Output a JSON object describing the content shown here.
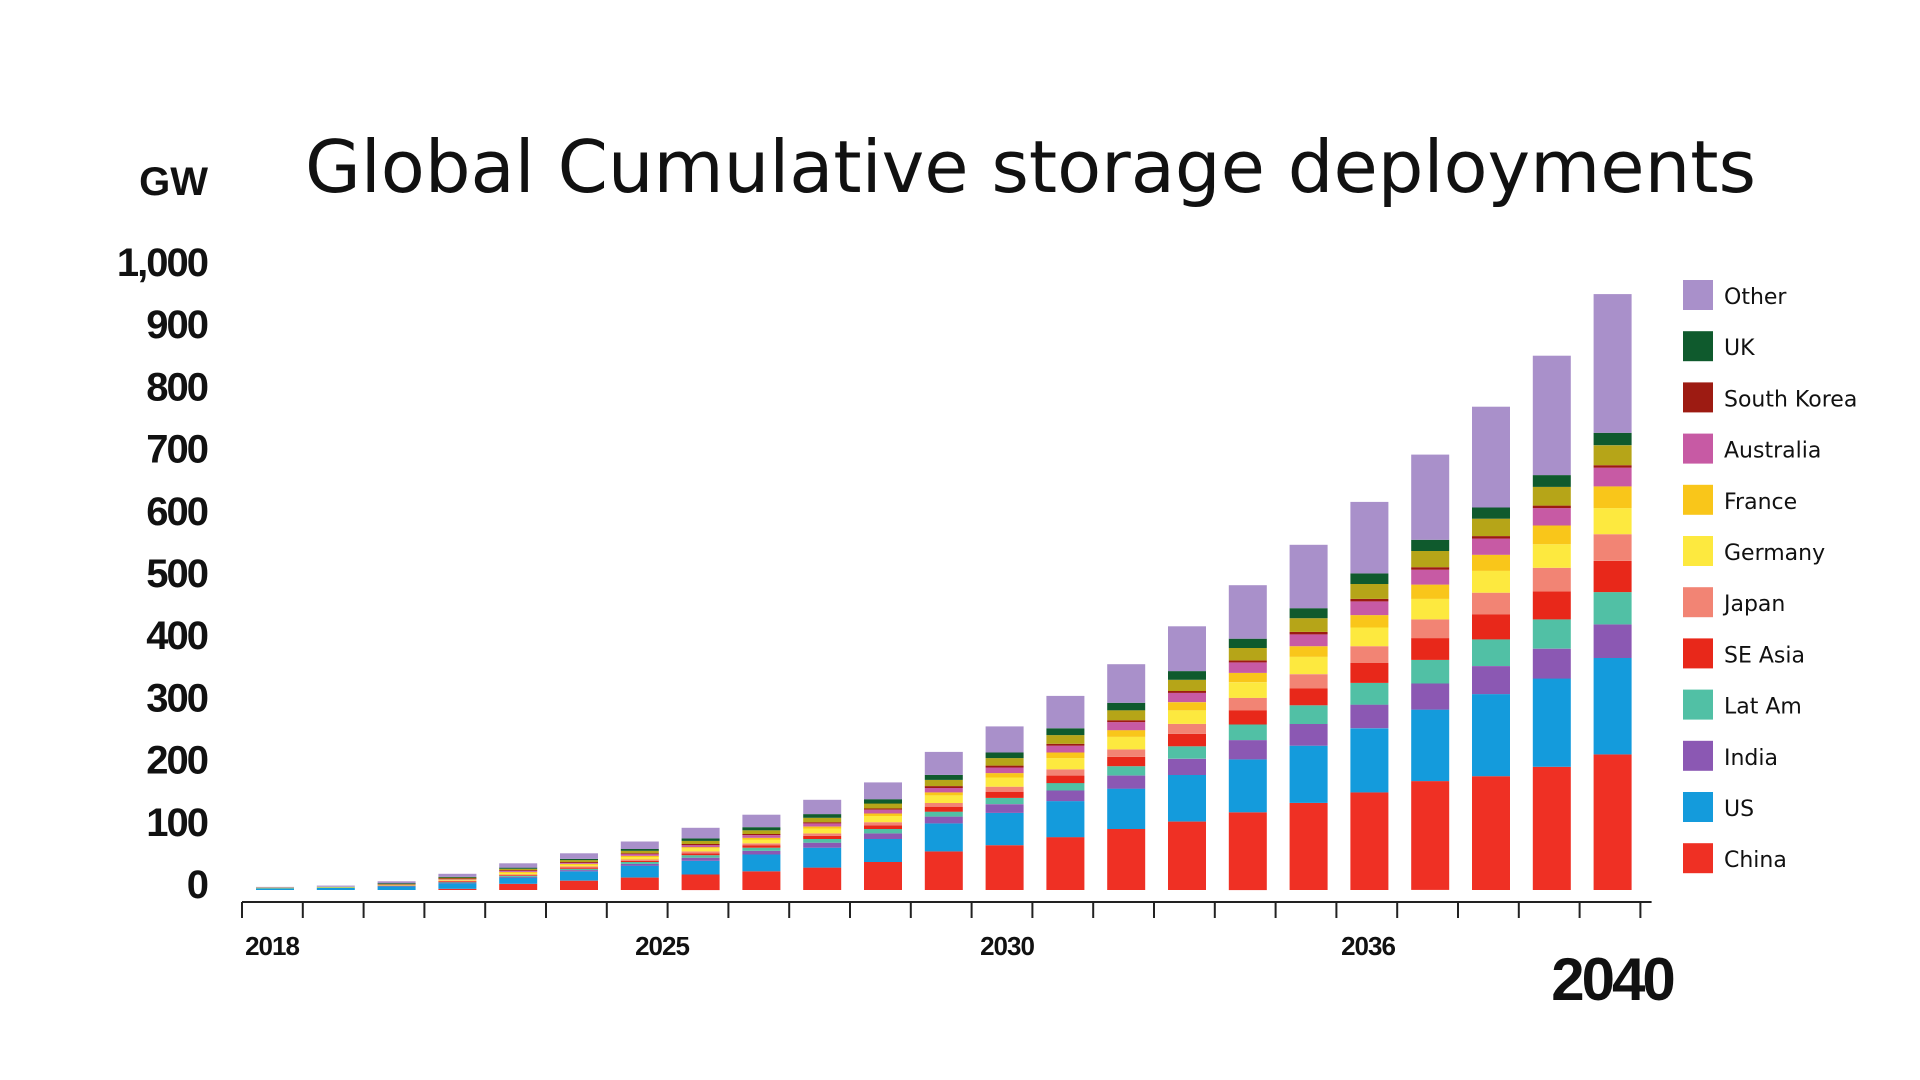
{
  "chart_data": {
    "type": "bar",
    "stacked": true,
    "title": "Global Cumulative storage deployments",
    "ylabel": "GW",
    "xlabel": "",
    "ylim": [
      0,
      1000
    ],
    "yticks": [
      "0",
      "100",
      "200",
      "300",
      "400",
      "500",
      "600",
      "700",
      "800",
      "900",
      "1,000"
    ],
    "xtick_labels_shown": [
      "2018",
      "2025",
      "2030",
      "2036",
      "2040"
    ],
    "grid": false,
    "legend_position": "right",
    "categories": [
      "2018",
      "2019",
      "2020",
      "2021",
      "2022",
      "2023",
      "2024",
      "2025",
      "2026",
      "2027",
      "2028",
      "2029",
      "2030",
      "2031",
      "2032",
      "2033",
      "2034",
      "2035",
      "2036",
      "2037",
      "2038",
      "2039",
      "2040"
    ],
    "series": [
      {
        "name": "China",
        "color": "#ef3024",
        "values": [
          0,
          0,
          0,
          2,
          10,
          15,
          20,
          25,
          30,
          36,
          45,
          62,
          72,
          85,
          98,
          110,
          125,
          140,
          157,
          175,
          183,
          198,
          218
        ]
      },
      {
        "name": "US",
        "color": "#149bdc",
        "values": [
          3,
          4,
          6,
          9,
          10,
          15,
          19,
          22,
          27,
          32,
          37,
          45,
          52,
          58,
          65,
          75,
          85,
          92,
          103,
          115,
          132,
          142,
          155
        ]
      },
      {
        "name": "India",
        "color": "#8b58b3",
        "values": [
          0,
          0,
          1,
          1,
          1,
          2,
          3,
          5,
          6,
          8,
          9,
          11,
          14,
          17,
          21,
          26,
          31,
          35,
          38,
          42,
          45,
          48,
          54
        ]
      },
      {
        "name": "Lat Am",
        "color": "#51c0a5",
        "values": [
          0,
          0,
          0,
          1,
          2,
          2,
          3,
          4,
          5,
          6,
          7,
          8,
          10,
          12,
          15,
          20,
          25,
          30,
          35,
          38,
          43,
          47,
          52
        ]
      },
      {
        "name": "SE Asia",
        "color": "#e8281a",
        "values": [
          0,
          0,
          0,
          1,
          1,
          2,
          2,
          3,
          4,
          5,
          6,
          8,
          10,
          12,
          15,
          20,
          23,
          27,
          32,
          35,
          40,
          45,
          50
        ]
      },
      {
        "name": "Japan",
        "color": "#f28474",
        "values": [
          0,
          0,
          0,
          1,
          1,
          2,
          2,
          3,
          3,
          4,
          5,
          6,
          8,
          10,
          12,
          16,
          20,
          23,
          27,
          30,
          35,
          38,
          43
        ]
      },
      {
        "name": "Germany",
        "color": "#fde93f",
        "values": [
          1,
          1,
          1,
          2,
          3,
          3,
          4,
          5,
          6,
          8,
          10,
          12,
          15,
          18,
          20,
          22,
          25,
          28,
          30,
          33,
          35,
          38,
          42
        ]
      },
      {
        "name": "France",
        "color": "#f9c61a",
        "values": [
          0,
          0,
          0,
          0,
          1,
          1,
          2,
          2,
          3,
          3,
          4,
          5,
          7,
          9,
          11,
          13,
          15,
          17,
          20,
          23,
          26,
          30,
          35
        ]
      },
      {
        "name": "Australia",
        "color": "#c75aa4",
        "values": [
          0,
          0,
          1,
          1,
          2,
          2,
          3,
          3,
          4,
          5,
          6,
          7,
          9,
          11,
          13,
          15,
          17,
          19,
          22,
          24,
          26,
          28,
          30
        ]
      },
      {
        "name": "South Korea",
        "color": "#9d1b12",
        "values": [
          0,
          0,
          0,
          1,
          1,
          1,
          1,
          2,
          2,
          2,
          2,
          3,
          3,
          3,
          3,
          3,
          3,
          4,
          4,
          4,
          4,
          4,
          4
        ]
      },
      {
        "name": "",
        "color": "#b6a518",
        "values": [
          0,
          0,
          1,
          1,
          2,
          3,
          4,
          5,
          6,
          7,
          8,
          10,
          12,
          14,
          16,
          18,
          20,
          22,
          24,
          26,
          28,
          30,
          32
        ]
      },
      {
        "name": "UK",
        "color": "#0f5a2d",
        "values": [
          0,
          0,
          1,
          1,
          2,
          2,
          3,
          4,
          5,
          6,
          7,
          8,
          9,
          11,
          12,
          14,
          15,
          16,
          17,
          18,
          18,
          19,
          20
        ]
      },
      {
        "name": "Other",
        "color": "#a990ca",
        "values": [
          1,
          2,
          3,
          5,
          7,
          9,
          12,
          17,
          20,
          23,
          27,
          37,
          42,
          52,
          62,
          72,
          86,
          102,
          115,
          137,
          162,
          192,
          223
        ]
      }
    ],
    "legend": [
      "Other",
      "UK",
      "South Korea",
      "Australia",
      "France",
      "Germany",
      "Japan",
      "SE Asia",
      "Lat Am",
      "India",
      "US",
      "China"
    ]
  }
}
